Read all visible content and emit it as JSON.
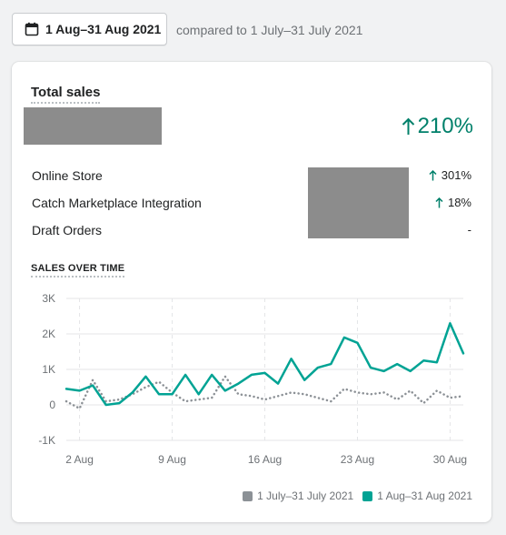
{
  "date_range": {
    "label": "1 Aug–31 Aug 2021",
    "compare_text": "compared to 1 July–31 July 2021"
  },
  "card": {
    "title": "Total sales",
    "growth": "210%",
    "channels": [
      {
        "name": "Online Store",
        "change": "301%",
        "trend": "up"
      },
      {
        "name": "Catch Marketplace Integration",
        "change": "18%",
        "trend": "up"
      },
      {
        "name": "Draft Orders",
        "change": "-",
        "trend": "none"
      }
    ],
    "section_title": "SALES OVER TIME"
  },
  "colors": {
    "accent": "#00a394",
    "previous": "#8c9196",
    "growth": "#00806a"
  },
  "chart_data": {
    "type": "line",
    "ylim": [
      -1000,
      3000
    ],
    "y_ticks": [
      3000,
      2000,
      1000,
      0,
      -1000
    ],
    "y_tick_labels": [
      "3K",
      "2K",
      "1K",
      "0",
      "-1K"
    ],
    "x": [
      1,
      2,
      3,
      4,
      5,
      6,
      7,
      8,
      9,
      10,
      11,
      12,
      13,
      14,
      15,
      16,
      17,
      18,
      19,
      20,
      21,
      22,
      23,
      24,
      25,
      26,
      27,
      28,
      29,
      30,
      31
    ],
    "x_ticks": [
      2,
      9,
      16,
      23,
      30
    ],
    "x_tick_labels": [
      "2 Aug",
      "9 Aug",
      "16 Aug",
      "23 Aug",
      "30 Aug"
    ],
    "series": [
      {
        "name": "1 July–31 July 2021",
        "style": "dotted",
        "color": "#8c9196",
        "values": [
          100,
          -100,
          700,
          100,
          150,
          300,
          500,
          650,
          350,
          100,
          150,
          200,
          800,
          300,
          250,
          150,
          250,
          350,
          300,
          200,
          100,
          450,
          350,
          300,
          350,
          150,
          400,
          50,
          400,
          200,
          250
        ]
      },
      {
        "name": "1 Aug–31 Aug 2021",
        "style": "solid",
        "color": "#00a394",
        "values": [
          450,
          400,
          550,
          0,
          50,
          350,
          800,
          300,
          300,
          850,
          300,
          850,
          400,
          600,
          850,
          900,
          600,
          1300,
          700,
          1050,
          1150,
          1900,
          1750,
          1050,
          950,
          1150,
          950,
          1250,
          1200,
          2300,
          1450
        ]
      }
    ]
  }
}
